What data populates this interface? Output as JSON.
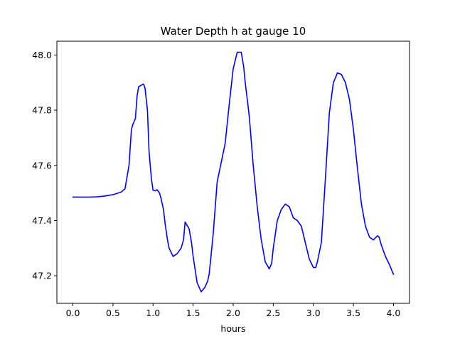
{
  "chart_data": {
    "type": "line",
    "title": "Water Depth h at gauge 10",
    "xlabel": "hours",
    "ylabel": "",
    "xlim": [
      -0.2,
      4.2
    ],
    "ylim": [
      47.1,
      48.05
    ],
    "x_ticks": [
      0.0,
      0.5,
      1.0,
      1.5,
      2.0,
      2.5,
      3.0,
      3.5,
      4.0
    ],
    "x_tick_labels": [
      "0.0",
      "0.5",
      "1.0",
      "1.5",
      "2.0",
      "2.5",
      "3.0",
      "3.5",
      "4.0"
    ],
    "y_ticks": [
      47.2,
      47.4,
      47.6,
      47.8,
      48.0
    ],
    "y_tick_labels": [
      "47.2",
      "47.4",
      "47.6",
      "47.8",
      "48.0"
    ],
    "grid": false,
    "series": [
      {
        "color": "#0000ff",
        "x": [
          0.0,
          0.1,
          0.2,
          0.3,
          0.4,
          0.5,
          0.6,
          0.65,
          0.7,
          0.73,
          0.75,
          0.78,
          0.8,
          0.82,
          0.85,
          0.88,
          0.9,
          0.93,
          0.95,
          0.98,
          1.0,
          1.03,
          1.05,
          1.08,
          1.1,
          1.13,
          1.15,
          1.18,
          1.2,
          1.25,
          1.3,
          1.35,
          1.38,
          1.4,
          1.45,
          1.48,
          1.5,
          1.55,
          1.6,
          1.63,
          1.65,
          1.68,
          1.7,
          1.75,
          1.8,
          1.85,
          1.9,
          1.95,
          2.0,
          2.05,
          2.1,
          2.13,
          2.15,
          2.2,
          2.25,
          2.3,
          2.35,
          2.4,
          2.45,
          2.48,
          2.5,
          2.55,
          2.6,
          2.65,
          2.7,
          2.75,
          2.8,
          2.85,
          2.9,
          2.95,
          3.0,
          3.03,
          3.05,
          3.1,
          3.15,
          3.2,
          3.25,
          3.3,
          3.35,
          3.4,
          3.45,
          3.5,
          3.55,
          3.6,
          3.65,
          3.7,
          3.75,
          3.8,
          3.82,
          3.85,
          3.9,
          3.95,
          4.0
        ],
        "y": [
          47.485,
          47.485,
          47.485,
          47.486,
          47.489,
          47.494,
          47.503,
          47.515,
          47.6,
          47.73,
          47.75,
          47.77,
          47.85,
          47.885,
          47.89,
          47.895,
          47.88,
          47.8,
          47.65,
          47.55,
          47.51,
          47.508,
          47.512,
          47.5,
          47.48,
          47.44,
          47.39,
          47.33,
          47.3,
          47.27,
          47.28,
          47.3,
          47.33,
          47.395,
          47.37,
          47.32,
          47.27,
          47.175,
          47.142,
          47.152,
          47.16,
          47.18,
          47.205,
          47.35,
          47.54,
          47.61,
          47.68,
          47.82,
          47.95,
          48.01,
          48.01,
          47.96,
          47.9,
          47.78,
          47.6,
          47.45,
          47.33,
          47.25,
          47.225,
          47.245,
          47.3,
          47.4,
          47.44,
          47.46,
          47.45,
          47.41,
          47.4,
          47.38,
          47.32,
          47.26,
          47.23,
          47.23,
          47.25,
          47.32,
          47.55,
          47.79,
          47.9,
          47.935,
          47.93,
          47.9,
          47.84,
          47.73,
          47.59,
          47.46,
          47.38,
          47.34,
          47.33,
          47.345,
          47.34,
          47.31,
          47.27,
          47.24,
          47.205
        ]
      }
    ]
  }
}
